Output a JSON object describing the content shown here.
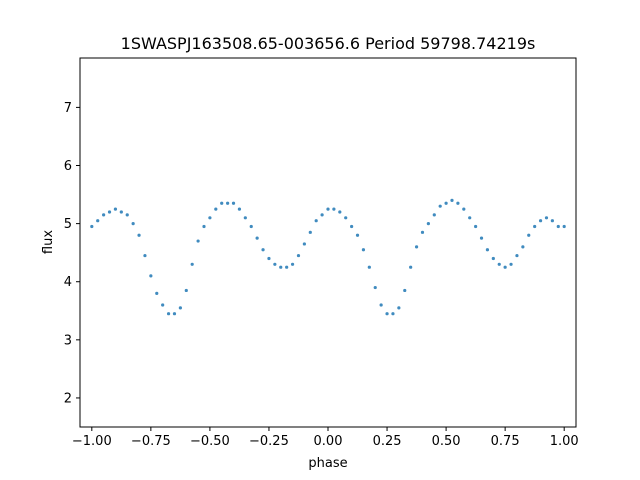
{
  "chart_data": {
    "type": "scatter",
    "title": "1SWASPJ163508.65-003656.6 Period 59798.74219s",
    "xlabel": "phase",
    "ylabel": "flux",
    "xlim": [
      -1.05,
      1.05
    ],
    "ylim": [
      1.5,
      7.85
    ],
    "xticks": [
      -1.0,
      -0.75,
      -0.5,
      -0.25,
      0.0,
      0.25,
      0.5,
      0.75,
      1.0
    ],
    "xtick_labels": [
      "−1.00",
      "−0.75",
      "−0.50",
      "−0.25",
      "0.00",
      "0.25",
      "0.50",
      "0.75",
      "1.00"
    ],
    "yticks": [
      2,
      3,
      4,
      5,
      6,
      7
    ],
    "ytick_labels": [
      "2",
      "3",
      "4",
      "5",
      "6",
      "7"
    ],
    "grid": false,
    "marker_color": "#1f77b4",
    "series": [
      {
        "x": [
          -1.0,
          -0.975,
          -0.95,
          -0.925,
          -0.9,
          -0.875,
          -0.85,
          -0.825,
          -0.8,
          -0.775,
          -0.75,
          -0.725,
          -0.7,
          -0.675,
          -0.65,
          -0.625,
          -0.6,
          -0.575,
          -0.55,
          -0.525,
          -0.5,
          -0.475,
          -0.45,
          -0.425,
          -0.4,
          -0.375,
          -0.35,
          -0.325,
          -0.3,
          -0.275,
          -0.25,
          -0.225,
          -0.2,
          -0.175,
          -0.15,
          -0.125,
          -0.1,
          -0.075,
          -0.05,
          -0.025,
          0.0,
          0.025,
          0.05,
          0.075,
          0.1,
          0.125,
          0.15,
          0.175,
          0.2,
          0.225,
          0.25,
          0.275,
          0.3,
          0.325,
          0.35,
          0.375,
          0.4,
          0.425,
          0.45,
          0.475,
          0.5,
          0.525,
          0.55,
          0.575,
          0.6,
          0.625,
          0.65,
          0.675,
          0.7,
          0.725,
          0.75,
          0.775,
          0.8,
          0.825,
          0.85,
          0.875,
          0.9,
          0.925,
          0.95,
          0.975,
          1.0
        ],
        "y": [
          4.95,
          5.05,
          5.15,
          5.2,
          5.25,
          5.2,
          5.15,
          5.0,
          4.8,
          4.45,
          4.1,
          3.8,
          3.6,
          3.45,
          3.45,
          3.55,
          3.85,
          4.3,
          4.7,
          4.95,
          5.1,
          5.25,
          5.35,
          5.35,
          5.35,
          5.25,
          5.1,
          4.95,
          4.75,
          4.55,
          4.4,
          4.3,
          4.25,
          4.25,
          4.3,
          4.45,
          4.65,
          4.85,
          5.05,
          5.15,
          5.25,
          5.25,
          5.2,
          5.1,
          4.95,
          4.8,
          4.55,
          4.25,
          3.9,
          3.6,
          3.45,
          3.45,
          3.55,
          3.85,
          4.25,
          4.6,
          4.85,
          5.0,
          5.15,
          5.3,
          5.35,
          5.4,
          5.35,
          5.25,
          5.1,
          4.95,
          4.75,
          4.55,
          4.4,
          4.3,
          4.25,
          4.3,
          4.45,
          4.6,
          4.8,
          4.95,
          5.05,
          5.1,
          5.05,
          4.95,
          4.95
        ]
      }
    ]
  }
}
